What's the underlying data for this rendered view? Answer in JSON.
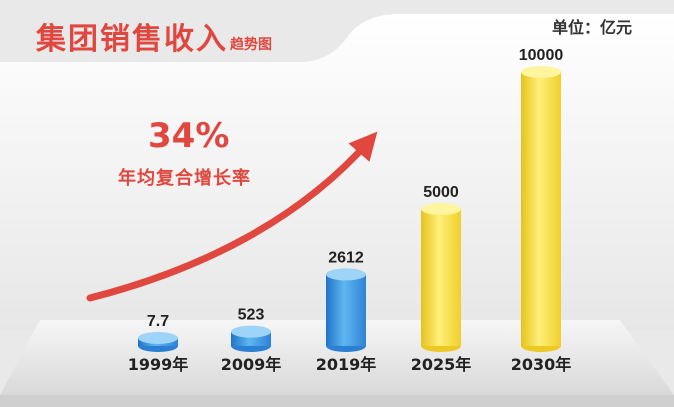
{
  "header": {
    "title": "集团销售收入",
    "subtitle": "趋势图",
    "unit": "单位：亿元"
  },
  "annotation": {
    "growth_rate": "34%",
    "growth_label": "年均复合增长率"
  },
  "colors": {
    "accent_red": "#e0483f",
    "bar_blue": "#3f9be0",
    "bar_yellow": "#f2d83a",
    "background": "#e9e9ea"
  },
  "chart_data": {
    "type": "bar",
    "categories": [
      "1999年",
      "2009年",
      "2019年",
      "2025年",
      "2030年"
    ],
    "values": [
      7.7,
      523,
      2612,
      5000,
      10000
    ],
    "value_labels": [
      "7.7",
      "523",
      "2612",
      "5000",
      "10000"
    ],
    "bar_colors": [
      "blue",
      "blue",
      "blue",
      "yellow",
      "yellow"
    ],
    "title": "集团销售收入趋势图",
    "xlabel": "",
    "ylabel": "",
    "ylim": [
      0,
      10000
    ],
    "grid": false,
    "legend": "none"
  }
}
